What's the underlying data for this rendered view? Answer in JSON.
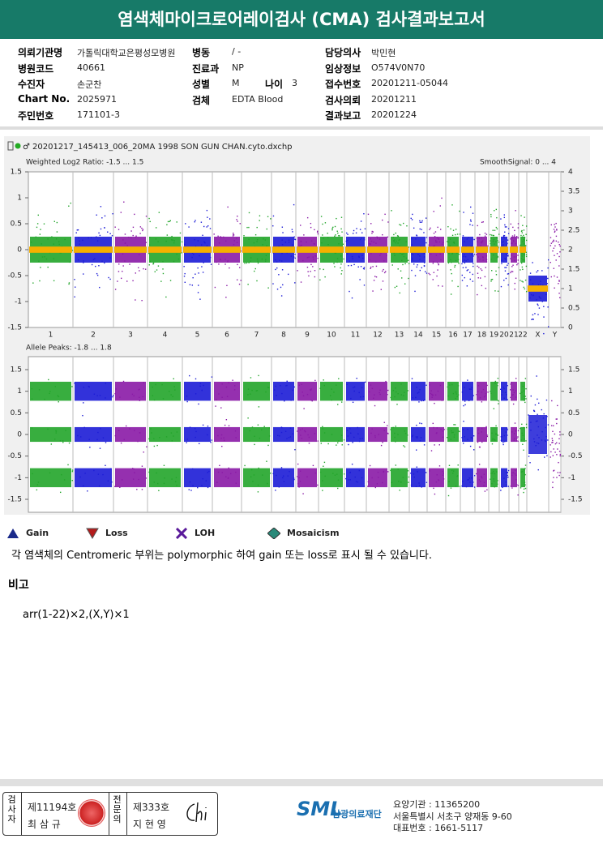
{
  "header": {
    "title": "염색체마이크로어레이검사 (CMA) 검사결과보고서"
  },
  "info": {
    "rows": [
      {
        "left": [
          "의뢰기관명",
          "가톨릭대학교은평성모병원"
        ],
        "mid": [
          "병동",
          "/ -"
        ],
        "right": [
          "담당의사",
          "박민현"
        ]
      },
      {
        "left": [
          "병원코드",
          "40661"
        ],
        "mid": [
          "진료과",
          "NP"
        ],
        "right": [
          "임상정보",
          "O574V0N70"
        ]
      },
      {
        "left": [
          "수진자",
          "손군찬"
        ],
        "mid": [
          "성별",
          "M"
        ],
        "age": [
          "나이",
          "3"
        ],
        "right": [
          "접수번호",
          "20201211-05044"
        ]
      },
      {
        "left": [
          "Chart No.",
          "2025971"
        ],
        "mid": [
          "검체",
          "EDTA Blood"
        ],
        "right": [
          "검사의뢰",
          "20201211"
        ]
      },
      {
        "left": [
          "주민번호",
          "171101-3"
        ],
        "right": [
          "결과보고",
          "20201224"
        ]
      }
    ]
  },
  "chart": {
    "file": "20201217_145413_006_20MA 1998 SON GUN CHAN.cyto.dxchp",
    "chromosomes": [
      "1",
      "2",
      "3",
      "4",
      "5",
      "6",
      "7",
      "8",
      "9",
      "10",
      "11",
      "12",
      "13",
      "14",
      "15",
      "16",
      "17",
      "18",
      "19",
      "20",
      "21",
      "22",
      "X",
      "Y"
    ],
    "panels": [
      {
        "label": "Weighted Log2 Ratio: -1.5 ... 1.5",
        "right_label": "SmoothSignal: 0 ... 4",
        "ylim": [
          -1.5,
          1.5
        ],
        "yticks": [
          1.5,
          1,
          0.5,
          0,
          -0.5,
          -1,
          -1.5
        ],
        "y2lim": [
          0,
          4
        ],
        "y2ticks": [
          4,
          3.5,
          3,
          2.5,
          2,
          1.5,
          1,
          0.5,
          0
        ]
      },
      {
        "label": "Allele Peaks: -1.8 ... 1.8",
        "ylim": [
          -1.8,
          1.8
        ],
        "yticks": [
          1.5,
          1,
          0.5,
          0,
          -0.5,
          -1,
          -1.5
        ],
        "y2lim": [
          -1.8,
          1.8
        ],
        "y2ticks": [
          1.5,
          1,
          0.5,
          0,
          -0.5,
          -1,
          -1.5
        ]
      }
    ]
  },
  "legend": [
    "Gain",
    "Loss",
    "LOH",
    "Mosaicism"
  ],
  "note": "각 염색체의 Centromeric 부위는 polymorphic 하여 gain 또는 loss로 표시 될 수 있습니다.",
  "remark": {
    "title": "비고",
    "text": "arr(1-22)×2,(X,Y)×1"
  },
  "footer": {
    "examiner": "검사자",
    "examiner_no": "제11194호",
    "examiner_name": "최 삼 규",
    "specialist": "전문의",
    "specialist_no": "제333호",
    "specialist_name": "지 현 영",
    "logo": "SML",
    "org": "삼광의료재단",
    "lines": [
      "요양기관 : 11365200",
      "서울특별시 서초구 양재동 9-60",
      "대표번호 : 1661-5117"
    ]
  }
}
